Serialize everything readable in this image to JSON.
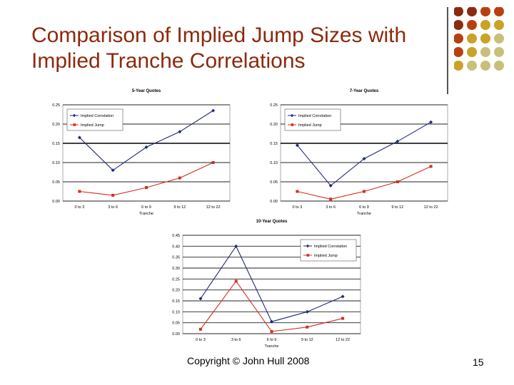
{
  "slide": {
    "title": "Comparison of Implied Jump Sizes with Implied Tranche Correlations",
    "footer": "Copyright © John Hull 2008",
    "page_number": "15",
    "decor_colors": [
      "#8b2a0c",
      "#b8400e",
      "#c9a227",
      "#c8c07a"
    ]
  },
  "chart_data": [
    {
      "type": "line",
      "title": "5-Year Quotes",
      "xlabel": "Tranche",
      "ylabel": "",
      "categories": [
        "0 to 3",
        "3 to 6",
        "6 to 9",
        "9 to 12",
        "12 to 22"
      ],
      "ylim": [
        0,
        0.25
      ],
      "yticks": [
        "0.00",
        "0.05",
        "0.10",
        "0.15",
        "0.20",
        "0.25"
      ],
      "legend": "top-left",
      "series": [
        {
          "name": "Implied Correlation",
          "values": [
            0.165,
            0.08,
            0.14,
            0.18,
            0.235
          ],
          "color": "#1f2a7a",
          "marker": "diamond"
        },
        {
          "name": "Implied Jump",
          "values": [
            0.025,
            0.015,
            0.035,
            0.06,
            0.1
          ],
          "color": "#d32f1f",
          "marker": "square"
        }
      ]
    },
    {
      "type": "line",
      "title": "7-Year Quotes",
      "xlabel": "Tranche",
      "ylabel": "",
      "categories": [
        "0 to 3",
        "3 to 6",
        "6 to 9",
        "9 to 12",
        "12 to 22"
      ],
      "ylim": [
        0,
        0.25
      ],
      "yticks": [
        "0.00",
        "0.05",
        "0.10",
        "0.15",
        "0.20",
        "0.25"
      ],
      "legend": "top-left",
      "series": [
        {
          "name": "Implied Correlation",
          "values": [
            0.145,
            0.04,
            0.11,
            0.155,
            0.205
          ],
          "color": "#1f2a7a",
          "marker": "diamond"
        },
        {
          "name": "Implied Jump",
          "values": [
            0.025,
            0.005,
            0.025,
            0.05,
            0.09
          ],
          "color": "#d32f1f",
          "marker": "square"
        }
      ]
    },
    {
      "type": "line",
      "title": "10-Year Quotes",
      "xlabel": "Tranche",
      "ylabel": "",
      "categories": [
        "0 to 3",
        "3 to 6",
        "6 to 9",
        "9 to 12",
        "12 to 22"
      ],
      "ylim": [
        0,
        0.45
      ],
      "yticks": [
        "0.00",
        "0.05",
        "0.10",
        "0.15",
        "0.20",
        "0.25",
        "0.30",
        "0.35",
        "0.40",
        "0.45"
      ],
      "legend": "top-right",
      "series": [
        {
          "name": "Implied Correlation",
          "values": [
            0.16,
            0.4,
            0.055,
            0.1,
            0.17
          ],
          "color": "#1f2a7a",
          "marker": "diamond"
        },
        {
          "name": "Implied Jump",
          "values": [
            0.02,
            0.24,
            0.01,
            0.03,
            0.07
          ],
          "color": "#d32f1f",
          "marker": "square"
        }
      ]
    }
  ]
}
